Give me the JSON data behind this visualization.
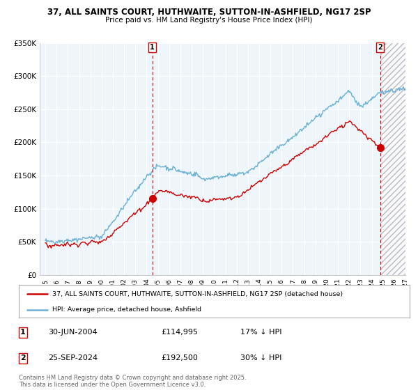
{
  "title": "37, ALL SAINTS COURT, HUTHWAITE, SUTTON-IN-ASHFIELD, NG17 2SP",
  "subtitle": "Price paid vs. HM Land Registry's House Price Index (HPI)",
  "ylim": [
    0,
    350000
  ],
  "xlim": [
    1994.5,
    2027
  ],
  "yticks": [
    0,
    50000,
    100000,
    150000,
    200000,
    250000,
    300000,
    350000
  ],
  "ytick_labels": [
    "£0",
    "£50K",
    "£100K",
    "£150K",
    "£200K",
    "£250K",
    "£300K",
    "£350K"
  ],
  "xticks": [
    1995,
    1996,
    1997,
    1998,
    1999,
    2000,
    2001,
    2002,
    2003,
    2004,
    2005,
    2006,
    2007,
    2008,
    2009,
    2010,
    2011,
    2012,
    2013,
    2014,
    2015,
    2016,
    2017,
    2018,
    2019,
    2020,
    2021,
    2022,
    2023,
    2024,
    2025,
    2026,
    2027
  ],
  "hpi_color": "#6ab0d4",
  "price_color": "#cc0000",
  "vline_color": "#cc0000",
  "hatch_color": "#cccccc",
  "bg_color": "#ffffff",
  "grid_color": "#cccccc",
  "purchase1_year": 2004.5,
  "purchase1_price": 114995,
  "purchase2_year": 2024.75,
  "purchase2_price": 192500,
  "legend_entry1": "37, ALL SAINTS COURT, HUTHWAITE, SUTTON-IN-ASHFIELD, NG17 2SP (detached house)",
  "legend_entry2": "HPI: Average price, detached house, Ashfield",
  "annotation1": [
    "1",
    "30-JUN-2004",
    "£114,995",
    "17% ↓ HPI"
  ],
  "annotation2": [
    "2",
    "25-SEP-2024",
    "£192,500",
    "30% ↓ HPI"
  ],
  "footer": "Contains HM Land Registry data © Crown copyright and database right 2025.\nThis data is licensed under the Open Government Licence v3.0."
}
